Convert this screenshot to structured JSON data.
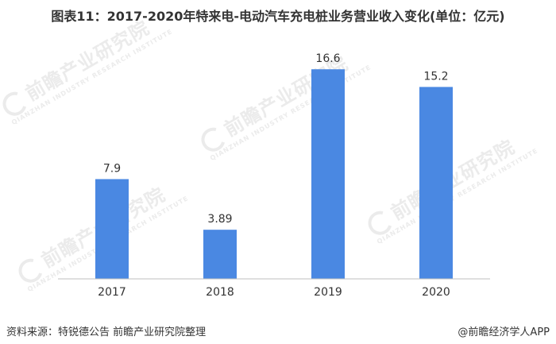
{
  "title": "图表11：2017-2020年特来电-电动汽车充电桩业务营业收入变化(单位：亿元)",
  "source": "资料来源：特锐德公告 前瞻产业研究院整理",
  "brand": "@前瞻经济学人APP",
  "watermark": {
    "text": "前瞻产业研究院",
    "sub": "QIANZHAN INDUSTRY RESEARCH INSTITUTE"
  },
  "colors": {
    "bar": "#4a88e2",
    "axis": "#bfbfbf",
    "text": "#333333"
  },
  "chart_data": {
    "type": "bar",
    "categories": [
      "2017",
      "2018",
      "2019",
      "2020"
    ],
    "values": [
      7.9,
      3.89,
      16.6,
      15.2
    ],
    "value_labels": [
      "7.9",
      "3.89",
      "16.6",
      "15.2"
    ],
    "title": "图表11：2017-2020年特来电-电动汽车充电桩业务营业收入变化(单位：亿元)",
    "xlabel": "",
    "ylabel": "",
    "ylim": [
      0,
      18.5
    ],
    "grid": false,
    "legend": "none"
  }
}
